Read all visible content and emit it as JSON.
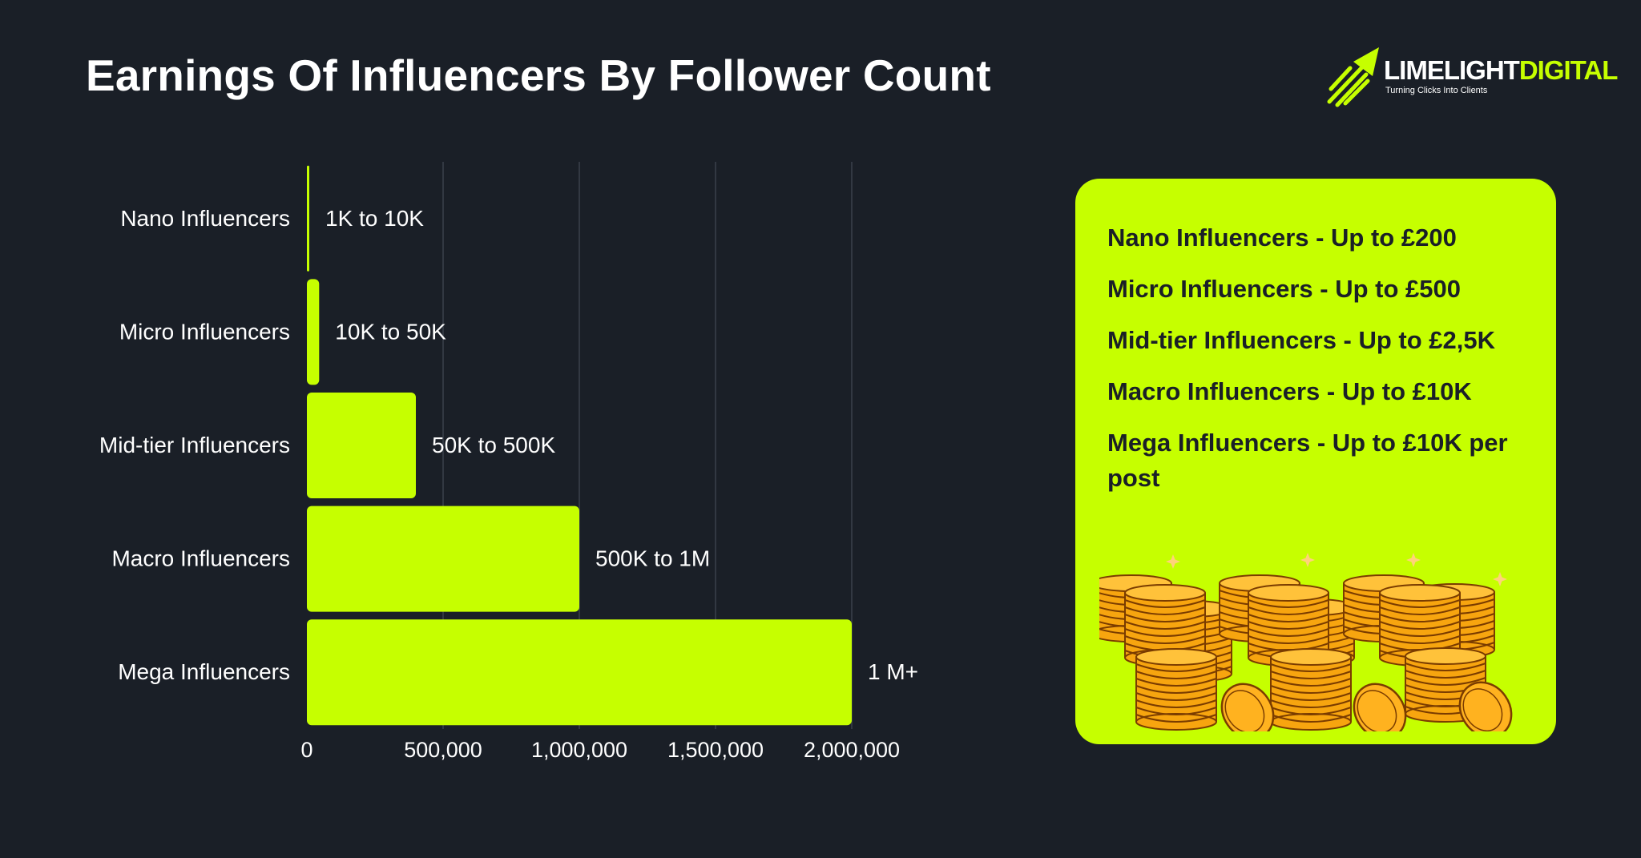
{
  "title": "Earnings Of Influencers By Follower Count",
  "logo": {
    "name_part1": "LIMELIGHT",
    "name_part2": "DIGITAL",
    "tagline": "Turning Clicks Into Clients"
  },
  "colors": {
    "background": "#1a1f27",
    "accent": "#c6ff00",
    "text": "#ffffff",
    "coin": "#f7a50f"
  },
  "chart_data": {
    "type": "bar",
    "orientation": "horizontal",
    "categories": [
      "Nano Influencers",
      "Micro Influencers",
      "Mid-tier Influencers",
      "Macro Influencers",
      "Mega Influencers"
    ],
    "values": [
      1000,
      45000,
      400000,
      1000000,
      2000000
    ],
    "data_labels": [
      "1K to 10K",
      "10K to 50K",
      "50K to 500K",
      "500K to 1M",
      "1 M+"
    ],
    "x_ticks": [
      "0",
      "500,000",
      "1,000,000",
      "1,500,000",
      "2,000,000"
    ],
    "xlim": [
      0,
      2000000
    ],
    "grid": true,
    "title": "",
    "xlabel": "",
    "ylabel": ""
  },
  "earnings": [
    "Nano Influencers - Up to £200",
    "Micro Influencers - Up to £500",
    "Mid-tier Influencers - Up to £2,5K",
    "Macro Influencers - Up to £10K",
    "Mega Influencers - Up to £10K per post"
  ],
  "illustration": "gold-coin-stacks"
}
